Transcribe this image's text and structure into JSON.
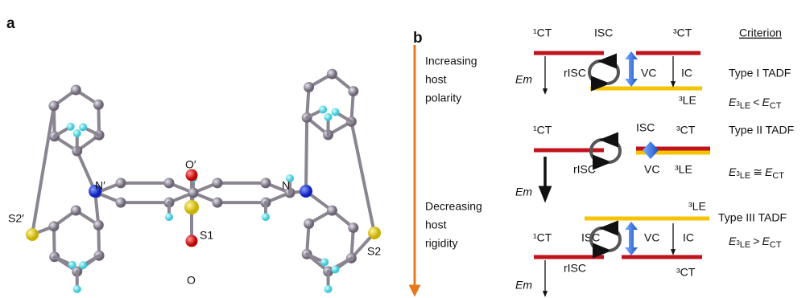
{
  "panel_a": {
    "label": "a",
    "atoms": [
      "S2′",
      "N′",
      "O′",
      "N",
      "S2",
      "S1",
      "O"
    ]
  },
  "panel_b": {
    "label": "b",
    "axis_labels": {
      "polarity": [
        "Increasing",
        "host",
        "polarity"
      ],
      "rigidity": [
        "Decreasing",
        "host",
        "rigidity"
      ]
    },
    "criterion_header": "Criterion",
    "criterion_symbol": "E",
    "rows": [
      {
        "singlet": "¹CT",
        "triplet_ct": "³CT",
        "triplet_le": "³LE",
        "isc": "ISC",
        "risc": "rISC",
        "vc": "VC",
        "ic": "IC",
        "em": "Em",
        "type": "Type I TADF",
        "criterion": {
          "sub_sup": "3",
          "sub": "LE",
          "relation": "<",
          "right_sub": "CT"
        }
      },
      {
        "singlet": "¹CT",
        "triplet_ct": "³CT",
        "triplet_le": "³LE",
        "isc": "ISC",
        "risc": "rISC",
        "vc": "VC",
        "em": "Em",
        "type": "Type II TADF",
        "criterion": {
          "sub_sup": "3",
          "sub": "LE",
          "relation": "≅",
          "right_sub": "CT"
        }
      },
      {
        "singlet": "¹CT",
        "triplet_ct": "³CT",
        "triplet_le": "³LE",
        "isc": "ISC",
        "risc": "rISC",
        "vc": "VC",
        "ic": "IC",
        "em": "Em",
        "type": "Type III TADF",
        "criterion": {
          "sub_sup": "3",
          "sub": "LE",
          "relation": ">",
          "right_sub": "CT"
        }
      }
    ]
  }
}
